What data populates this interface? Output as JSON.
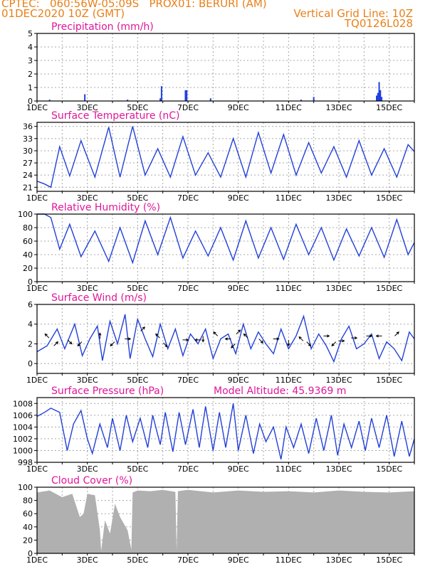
{
  "header": {
    "left_line1": "CPTEC:   060:56W-05:09S   PROX01: BERURI (AM)",
    "left_line2": "01DEC2020 10Z (GMT)",
    "right_line1": "Vertical Grid Line: 10Z",
    "right_line2": "TQ0126L028"
  },
  "chart_data": [
    {
      "type": "bar",
      "title": "Precipitation (mm/h)",
      "ylim": [
        0,
        5
      ],
      "yticks": [
        0,
        1,
        2,
        3,
        4,
        5
      ],
      "x_start_day": 1,
      "x_end_day": 16,
      "xtick_labels": [
        "1DEC",
        "3DEC",
        "5DEC",
        "7DEC",
        "9DEC",
        "11DEC",
        "13DEC",
        "15DEC"
      ],
      "bars": [
        {
          "day": 1.5,
          "value": 0.1
        },
        {
          "day": 2.9,
          "value": 0.5
        },
        {
          "day": 4.6,
          "value": 0.1
        },
        {
          "day": 5.9,
          "value": 0.2
        },
        {
          "day": 5.95,
          "value": 1.1
        },
        {
          "day": 6.9,
          "value": 0.8
        },
        {
          "day": 6.95,
          "value": 0.8
        },
        {
          "day": 7.9,
          "value": 0.2
        },
        {
          "day": 11.5,
          "value": 0.1
        },
        {
          "day": 12.0,
          "value": 0.3
        },
        {
          "day": 14.5,
          "value": 0.4
        },
        {
          "day": 14.55,
          "value": 0.6
        },
        {
          "day": 14.6,
          "value": 1.4
        },
        {
          "day": 14.65,
          "value": 0.8
        },
        {
          "day": 14.7,
          "value": 0.3
        }
      ],
      "color": "#1f3fe0",
      "grid": true
    },
    {
      "type": "line",
      "title": "Surface Temperature (nC)",
      "ylim": [
        20,
        37
      ],
      "yticks": [
        21,
        24,
        27,
        30,
        33,
        36
      ],
      "x_start_day": 1,
      "x_end_day": 16,
      "xtick_labels": [
        "1DEC",
        "3DEC",
        "5DEC",
        "7DEC",
        "9DEC",
        "11DEC",
        "13DEC",
        "15DEC"
      ],
      "x_days": [
        1,
        1.3,
        1.55,
        1.9,
        2.3,
        2.75,
        3.3,
        3.85,
        4.3,
        4.8,
        5.3,
        5.8,
        6.3,
        6.8,
        7.3,
        7.8,
        8.3,
        8.8,
        9.3,
        9.8,
        10.3,
        10.8,
        11.3,
        11.8,
        12.3,
        12.8,
        13.3,
        13.8,
        14.3,
        14.8,
        15.3,
        15.75,
        16
      ],
      "values": [
        22.5,
        21.8,
        21.0,
        31.0,
        23.8,
        32.5,
        23.5,
        35.8,
        23.5,
        36.0,
        24.0,
        30.5,
        23.5,
        33.5,
        24.0,
        29.5,
        23.5,
        33.0,
        23.5,
        34.5,
        24.5,
        34.0,
        24.0,
        32.0,
        24.5,
        31.0,
        23.5,
        32.5,
        24.0,
        30.5,
        23.5,
        31.5,
        29.8
      ],
      "color": "#2240d8",
      "grid": true
    },
    {
      "type": "line",
      "title": "Relative Humidity (%)",
      "ylim": [
        0,
        100
      ],
      "yticks": [
        0,
        20,
        40,
        60,
        80,
        100
      ],
      "x_start_day": 1,
      "x_end_day": 16,
      "xtick_labels": [
        "1DEC",
        "3DEC",
        "5DEC",
        "7DEC",
        "9DEC",
        "11DEC",
        "13DEC",
        "15DEC"
      ],
      "x_days": [
        1,
        1.3,
        1.55,
        1.9,
        2.3,
        2.75,
        3.3,
        3.85,
        4.3,
        4.8,
        5.3,
        5.8,
        6.3,
        6.8,
        7.3,
        7.8,
        8.3,
        8.8,
        9.3,
        9.8,
        10.3,
        10.8,
        11.3,
        11.8,
        12.3,
        12.8,
        13.3,
        13.8,
        14.3,
        14.8,
        15.3,
        15.75,
        16
      ],
      "values": [
        100,
        100,
        95,
        48,
        85,
        37,
        75,
        30,
        80,
        28,
        90,
        40,
        95,
        35,
        75,
        38,
        80,
        32,
        90,
        35,
        80,
        33,
        85,
        40,
        80,
        32,
        78,
        38,
        80,
        36,
        92,
        40,
        58
      ],
      "color": "#2240d8",
      "grid": true
    },
    {
      "type": "line",
      "title": "Surface Wind (m/s)",
      "ylim": [
        -1,
        6
      ],
      "yticks": [
        0,
        2,
        4,
        6
      ],
      "x_start_day": 1,
      "x_end_day": 16,
      "xtick_labels": [
        "1DEC",
        "3DEC",
        "5DEC",
        "7DEC",
        "9DEC",
        "11DEC",
        "13DEC",
        "15DEC"
      ],
      "x_days": [
        1,
        1.4,
        1.8,
        2.1,
        2.5,
        2.8,
        3.1,
        3.4,
        3.6,
        3.9,
        4.2,
        4.5,
        4.7,
        5.0,
        5.3,
        5.6,
        5.9,
        6.2,
        6.5,
        6.8,
        7.1,
        7.4,
        7.7,
        8.0,
        8.3,
        8.6,
        8.9,
        9.2,
        9.5,
        9.8,
        10.1,
        10.4,
        10.7,
        11.0,
        11.3,
        11.6,
        11.9,
        12.2,
        12.5,
        12.8,
        13.1,
        13.4,
        13.7,
        14.0,
        14.3,
        14.6,
        14.9,
        15.2,
        15.5,
        15.8,
        16
      ],
      "values": [
        1.2,
        1.8,
        3.5,
        1.5,
        4.0,
        0.8,
        2.5,
        3.8,
        0.3,
        4.3,
        2.0,
        5.0,
        0.5,
        4.5,
        2.5,
        0.7,
        4.0,
        1.5,
        3.5,
        0.8,
        3.0,
        2.0,
        3.5,
        0.5,
        2.5,
        3.0,
        1.0,
        4.0,
        1.5,
        3.2,
        2.0,
        1.0,
        3.5,
        1.5,
        2.8,
        4.8,
        1.5,
        3.0,
        1.8,
        0.2,
        2.5,
        3.8,
        1.5,
        2.0,
        3.0,
        0.5,
        2.2,
        1.5,
        0.3,
        3.2,
        2.5
      ],
      "color": "#2240d8",
      "grid": true,
      "wind_vectors": [
        {
          "day": 1.4,
          "speed": 2.8,
          "dx": -1,
          "dy": 1
        },
        {
          "day": 1.75,
          "speed": 2.0,
          "dx": 1,
          "dy": 1
        },
        {
          "day": 2.3,
          "speed": 2.2,
          "dx": 1,
          "dy": -1
        },
        {
          "day": 2.7,
          "speed": 2.0,
          "dx": -1,
          "dy": -1
        },
        {
          "day": 3.5,
          "speed": 2.8,
          "dx": 0,
          "dy": 1
        },
        {
          "day": 4.0,
          "speed": 2.0,
          "dx": -1,
          "dy": -1
        },
        {
          "day": 4.6,
          "speed": 2.5,
          "dx": 1,
          "dy": 0
        },
        {
          "day": 5.2,
          "speed": 3.5,
          "dx": 1,
          "dy": 1
        },
        {
          "day": 5.8,
          "speed": 2.8,
          "dx": -1,
          "dy": 1
        },
        {
          "day": 6.1,
          "speed": 1.9,
          "dx": 1,
          "dy": -1
        },
        {
          "day": 6.9,
          "speed": 2.4,
          "dx": 1,
          "dy": 0
        },
        {
          "day": 7.4,
          "speed": 2.4,
          "dx": -1,
          "dy": 0
        },
        {
          "day": 7.6,
          "speed": 2.5,
          "dx": 0,
          "dy": -1
        },
        {
          "day": 8.1,
          "speed": 3.0,
          "dx": -1,
          "dy": 1
        },
        {
          "day": 8.6,
          "speed": 2.5,
          "dx": -1,
          "dy": 0
        },
        {
          "day": 8.8,
          "speed": 1.8,
          "dx": -1,
          "dy": -1
        },
        {
          "day": 9.0,
          "speed": 3.2,
          "dx": 1,
          "dy": 1
        },
        {
          "day": 9.3,
          "speed": 2.8,
          "dx": -1,
          "dy": 1
        },
        {
          "day": 9.9,
          "speed": 2.3,
          "dx": 1,
          "dy": -1
        },
        {
          "day": 10.5,
          "speed": 2.5,
          "dx": 1,
          "dy": 0
        },
        {
          "day": 11.0,
          "speed": 2.1,
          "dx": 0,
          "dy": -1
        },
        {
          "day": 11.5,
          "speed": 2.5,
          "dx": -1,
          "dy": 1
        },
        {
          "day": 11.8,
          "speed": 2.0,
          "dx": 1,
          "dy": -1
        },
        {
          "day": 12.5,
          "speed": 2.8,
          "dx": 1,
          "dy": 0
        },
        {
          "day": 12.8,
          "speed": 2.0,
          "dx": -1,
          "dy": -1
        },
        {
          "day": 13.1,
          "speed": 2.3,
          "dx": 1,
          "dy": 0
        },
        {
          "day": 13.6,
          "speed": 2.6,
          "dx": 1,
          "dy": 0
        },
        {
          "day": 14.2,
          "speed": 2.8,
          "dx": 1,
          "dy": 0
        },
        {
          "day": 14.6,
          "speed": 2.8,
          "dx": -1,
          "dy": 0
        },
        {
          "day": 15.3,
          "speed": 3.0,
          "dx": 1,
          "dy": 1
        }
      ]
    },
    {
      "type": "line",
      "title": "Surface Pressure (hPa)",
      "annotation": "Model Altitude: 45.9369 m",
      "ylim": [
        998,
        1009
      ],
      "yticks": [
        998,
        1000,
        1002,
        1004,
        1006,
        1008
      ],
      "x_start_day": 1,
      "x_end_day": 16,
      "xtick_labels": [
        "1DEC",
        "3DEC",
        "5DEC",
        "7DEC",
        "9DEC",
        "11DEC",
        "13DEC",
        "15DEC"
      ],
      "x_days": [
        1,
        1.3,
        1.55,
        1.9,
        2.2,
        2.45,
        2.75,
        3.0,
        3.2,
        3.5,
        3.8,
        4.0,
        4.3,
        4.55,
        4.8,
        5.1,
        5.4,
        5.6,
        5.9,
        6.1,
        6.4,
        6.65,
        6.9,
        7.2,
        7.45,
        7.7,
        8.0,
        8.25,
        8.5,
        8.8,
        9.0,
        9.3,
        9.6,
        9.85,
        10.1,
        10.4,
        10.7,
        10.9,
        11.2,
        11.5,
        11.8,
        12.1,
        12.4,
        12.7,
        12.95,
        13.2,
        13.5,
        13.8,
        14.05,
        14.3,
        14.6,
        14.9,
        15.2,
        15.5,
        15.8,
        16
      ],
      "values": [
        1005.8,
        1006.5,
        1007.2,
        1006.5,
        1000.0,
        1004.5,
        1006.8,
        1002.0,
        999.5,
        1004.5,
        1000.5,
        1005.5,
        1000.0,
        1006.0,
        1001.5,
        1005.5,
        1000.5,
        1006.0,
        1001.0,
        1006.5,
        999.8,
        1006.5,
        1001.0,
        1007.0,
        1000.5,
        1007.5,
        1000.0,
        1006.5,
        1000.5,
        1008.0,
        1000.0,
        1006.0,
        999.5,
        1004.5,
        1001.5,
        1004.0,
        998.5,
        1004.0,
        1000.5,
        1004.5,
        999.5,
        1005.5,
        1000.0,
        1006.0,
        999.2,
        1004.5,
        1000.5,
        1005.0,
        1000.0,
        1005.5,
        1000.5,
        1006.0,
        999.0,
        1005.0,
        999.0,
        1002.0
      ],
      "color": "#2240d8",
      "grid": true
    },
    {
      "type": "area",
      "title": "Cloud Cover (%)",
      "ylim": [
        0,
        100
      ],
      "yticks": [
        0,
        20,
        40,
        60,
        80,
        100
      ],
      "x_start_day": 1,
      "x_end_day": 16,
      "xtick_labels": [
        "1DEC",
        "3DEC",
        "5DEC",
        "7DEC",
        "9DEC",
        "11DEC",
        "13DEC",
        "15DEC"
      ],
      "x_days": [
        1,
        1.5,
        2.0,
        2.4,
        2.7,
        2.85,
        3.0,
        3.3,
        3.5,
        3.55,
        3.7,
        3.9,
        4.1,
        4.3,
        4.6,
        4.75,
        4.8,
        5.0,
        5.5,
        6.0,
        6.5,
        6.55,
        6.6,
        7.0,
        8.0,
        9.0,
        10.0,
        11.0,
        12.0,
        13.0,
        14.0,
        15.0,
        16
      ],
      "values": [
        92,
        95,
        85,
        90,
        55,
        60,
        90,
        88,
        35,
        4,
        50,
        30,
        75,
        55,
        35,
        6,
        92,
        95,
        94,
        96,
        93,
        5,
        94,
        96,
        92,
        95,
        93,
        94,
        92,
        95,
        93,
        92,
        94
      ],
      "color": "#b0b0b0",
      "grid": true
    }
  ]
}
